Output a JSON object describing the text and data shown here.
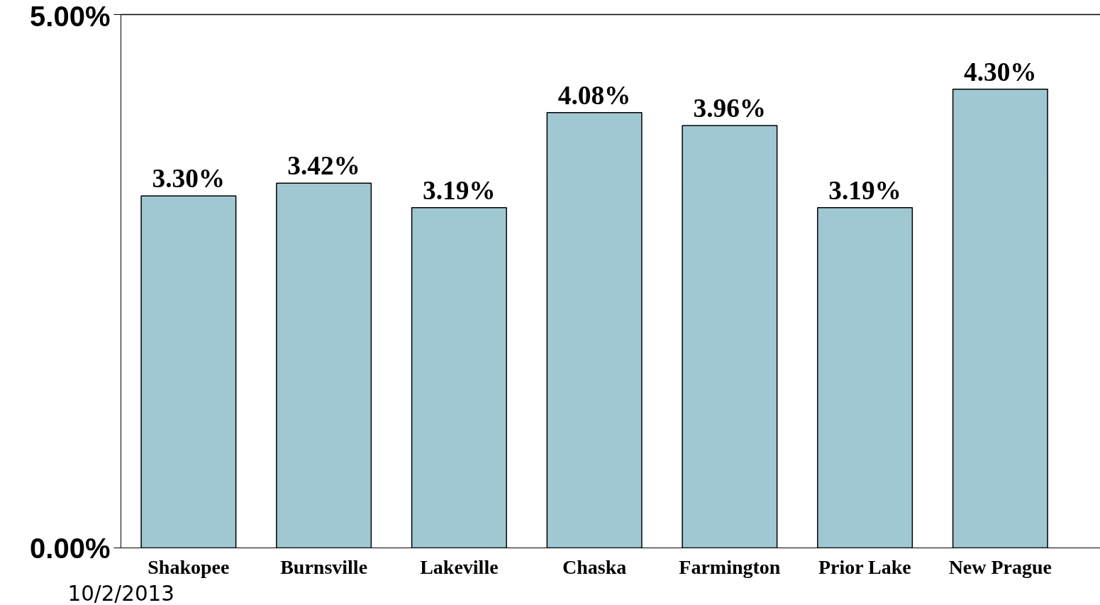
{
  "chart_data": {
    "type": "bar",
    "categories": [
      "Shakopee",
      "Burnsville",
      "Lakeville",
      "Chaska",
      "Farmington",
      "Prior Lake",
      "New Prague"
    ],
    "values": [
      3.3,
      3.42,
      3.19,
      4.08,
      3.96,
      3.19,
      4.3
    ],
    "color": "#a0c8d2",
    "value_labels": [
      "3.30%",
      "3.42%",
      "3.19%",
      "4.08%",
      "3.96%",
      "3.19%",
      "4.30%"
    ],
    "ylim": [
      0,
      5
    ],
    "yticks": [
      {
        "value": 0,
        "label": "0.00%"
      },
      {
        "value": 5,
        "label": "5.00%"
      }
    ],
    "grid": false,
    "annotations": [
      "10/2/2013"
    ]
  }
}
